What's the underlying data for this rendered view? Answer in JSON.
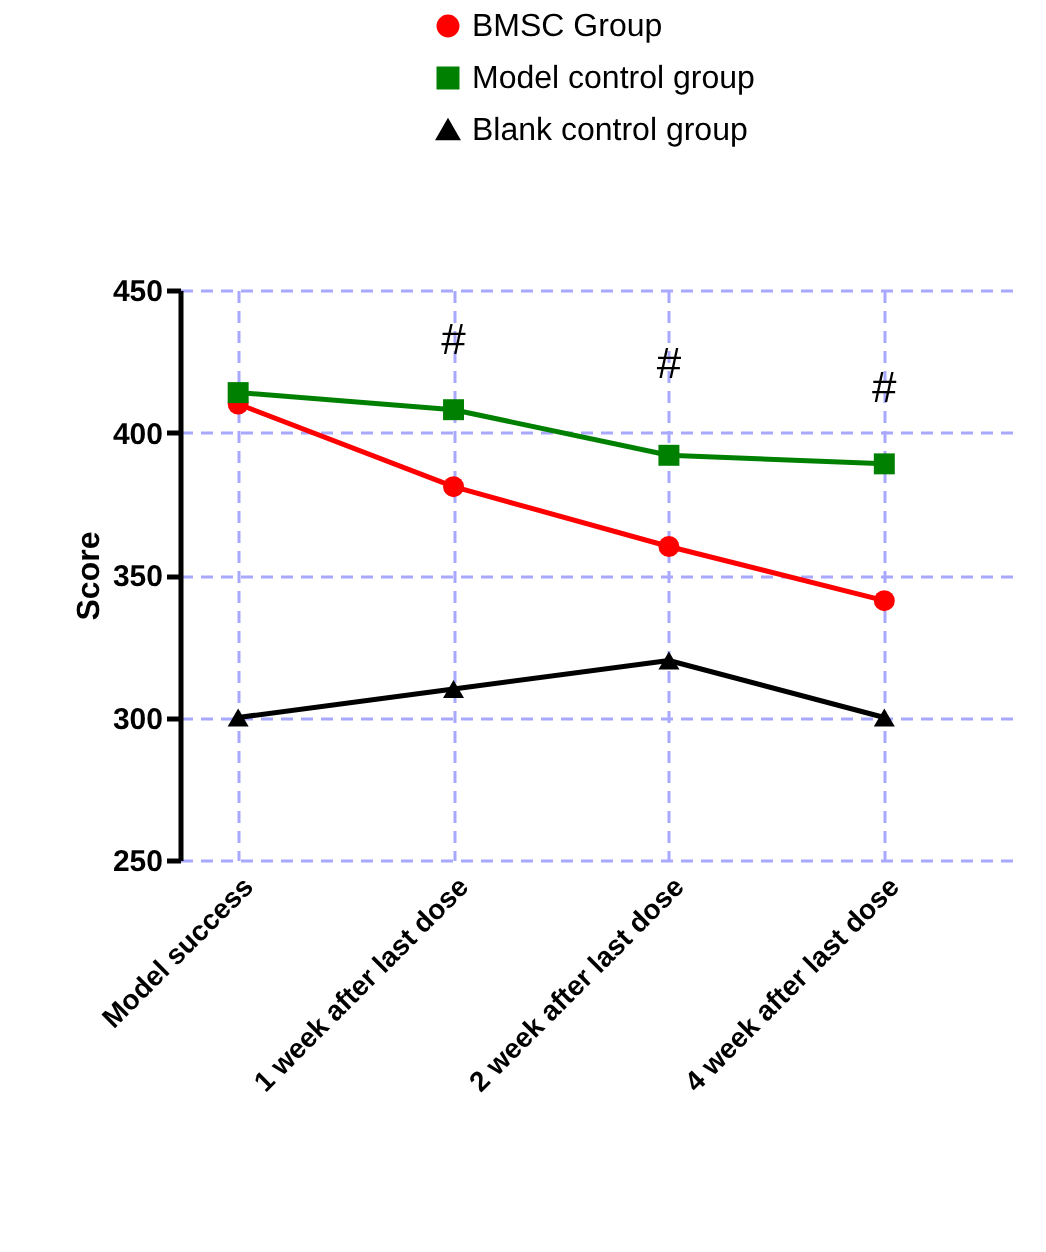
{
  "chart_data": {
    "type": "line",
    "ylabel": "Score",
    "categories": [
      "Model success",
      "1 week after last dose",
      "2 week after last dose",
      "4 week after last dose"
    ],
    "series": [
      {
        "name": "BMSC Group",
        "color": "#ff0000",
        "marker": "circle",
        "values": [
          410,
          381,
          360,
          341
        ]
      },
      {
        "name": "Model control group",
        "color": "#008000",
        "marker": "square",
        "values": [
          414,
          408,
          392,
          389
        ]
      },
      {
        "name": "Blank control group",
        "color": "#000000",
        "marker": "triangle",
        "values": [
          300,
          310,
          320,
          300
        ]
      }
    ],
    "ylim": [
      250,
      450
    ],
    "yticks": [
      250,
      300,
      350,
      400,
      450
    ],
    "grid": true,
    "legend": "top",
    "annotations": [
      "#",
      "#",
      "#"
    ]
  }
}
